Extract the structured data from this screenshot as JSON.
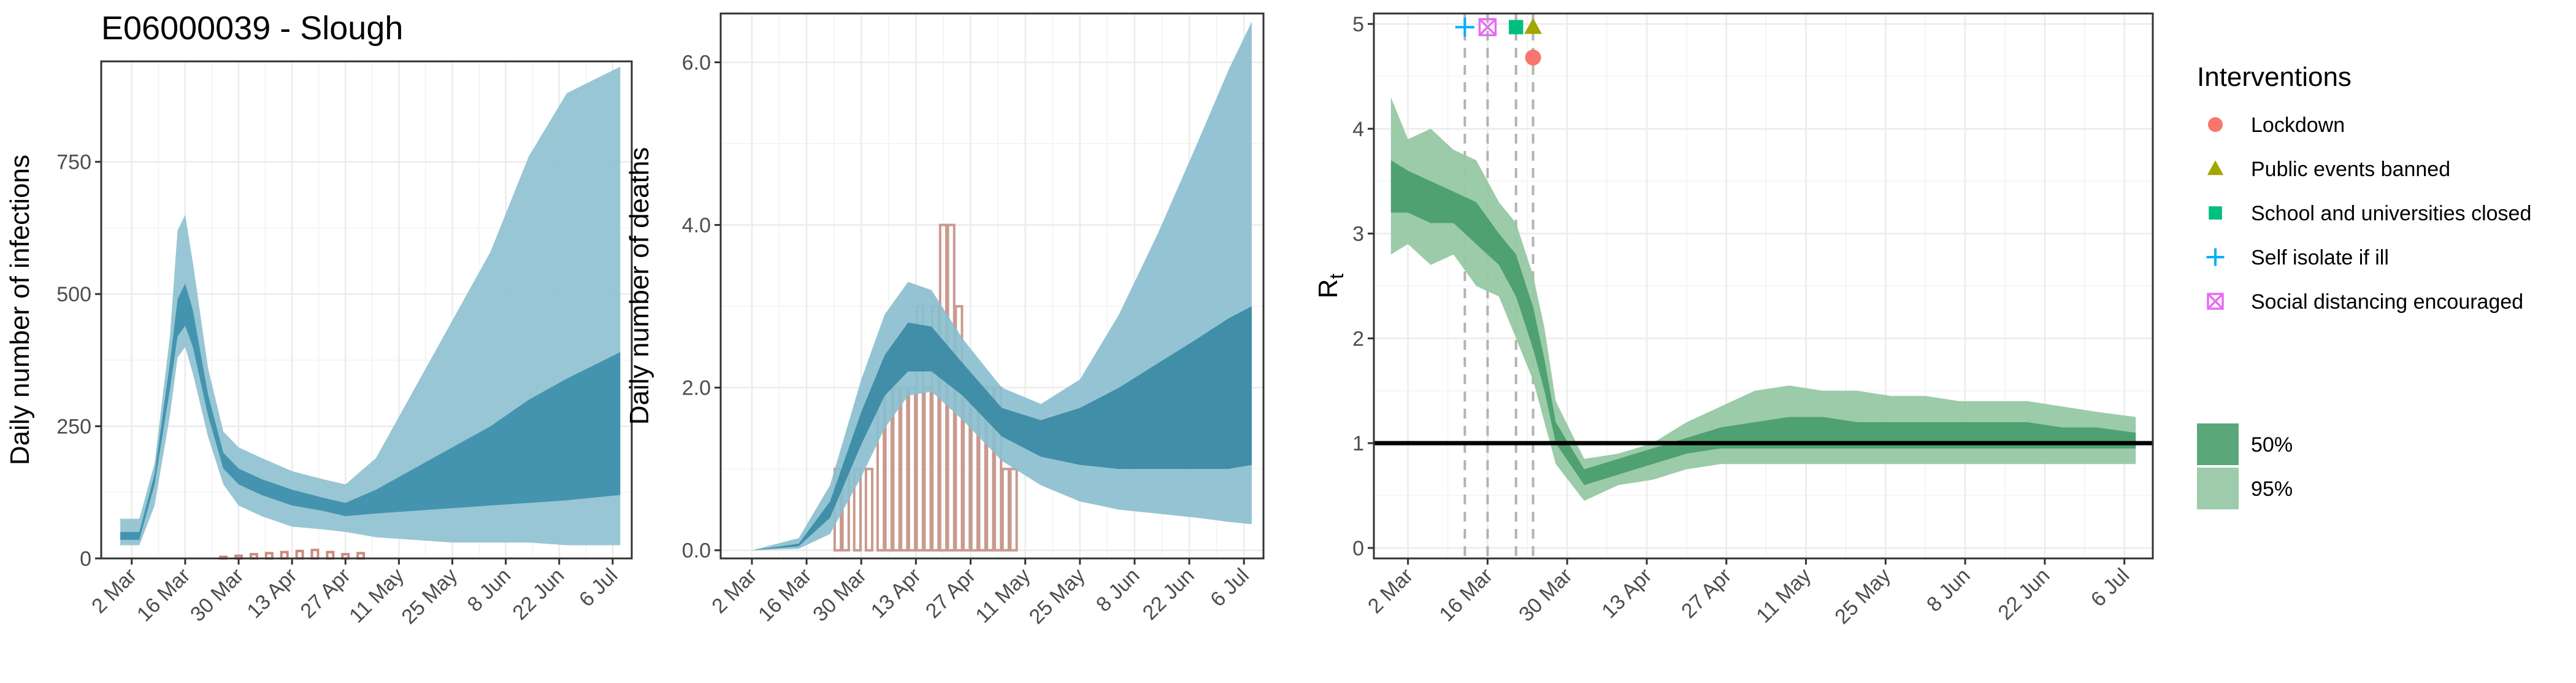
{
  "colors": {
    "infections_ci95": "#8fc1d0",
    "infections_ci50": "#3d8fab",
    "infections_bar": "#c98b7d",
    "deaths_ci95": "#8bbfcf",
    "deaths_ci50": "#3a89a5",
    "deaths_bar": "#c99a8e",
    "rt_ci95": "#96c8a4",
    "rt_ci50": "#4b9e6e",
    "reference_line": "#000000",
    "lockdown": "#f8766d",
    "public_events_banned": "#a3a500",
    "schools_closed": "#00bf7d",
    "self_isolate": "#00b0f6",
    "social_distancing": "#e76bf3",
    "grid_major": "#ebebeb",
    "grid_minor": "#f5f5f5"
  },
  "chart_data": [
    {
      "id": "infections",
      "type": "area",
      "title": "E06000039 - Slough",
      "ylabel": "Daily number of infections",
      "xlabel": "",
      "x_range": [
        "2020-02-23",
        "2020-07-11"
      ],
      "x_ticks": [
        "2 Mar",
        "16 Mar",
        "30 Mar",
        "13 Apr",
        "27 Apr",
        "11 May",
        "25 May",
        "8 Jun",
        "22 Jun",
        "6 Jul"
      ],
      "x_tick_dates": [
        "2020-03-02",
        "2020-03-16",
        "2020-03-30",
        "2020-04-13",
        "2020-04-27",
        "2020-05-11",
        "2020-05-25",
        "2020-06-08",
        "2020-06-22",
        "2020-07-06"
      ],
      "ylim": [
        0,
        940
      ],
      "y_ticks": [
        0,
        250,
        500,
        750
      ],
      "y_tick_labels": [
        "0",
        "250",
        "500",
        "750"
      ],
      "grid": true,
      "series": [
        {
          "kind": "ribbon-95",
          "x": [
            "2020-02-28",
            "2020-03-04",
            "2020-03-08",
            "2020-03-12",
            "2020-03-14",
            "2020-03-16",
            "2020-03-18",
            "2020-03-22",
            "2020-03-26",
            "2020-03-30",
            "2020-04-05",
            "2020-04-13",
            "2020-04-21",
            "2020-04-27",
            "2020-05-05",
            "2020-05-15",
            "2020-05-25",
            "2020-06-04",
            "2020-06-14",
            "2020-06-24",
            "2020-07-08"
          ],
          "low": [
            25,
            25,
            100,
            270,
            380,
            400,
            350,
            230,
            140,
            100,
            80,
            60,
            55,
            50,
            40,
            35,
            30,
            30,
            30,
            25,
            25
          ],
          "high": [
            75,
            75,
            180,
            420,
            620,
            650,
            560,
            360,
            240,
            210,
            190,
            165,
            150,
            140,
            190,
            320,
            450,
            580,
            760,
            880,
            930
          ]
        },
        {
          "kind": "ribbon-50",
          "x": [
            "2020-02-28",
            "2020-03-04",
            "2020-03-08",
            "2020-03-12",
            "2020-03-14",
            "2020-03-16",
            "2020-03-18",
            "2020-03-22",
            "2020-03-26",
            "2020-03-30",
            "2020-04-05",
            "2020-04-13",
            "2020-04-21",
            "2020-04-27",
            "2020-05-05",
            "2020-05-15",
            "2020-05-25",
            "2020-06-04",
            "2020-06-14",
            "2020-06-24",
            "2020-07-08"
          ],
          "low": [
            35,
            35,
            140,
            320,
            420,
            440,
            400,
            270,
            170,
            140,
            120,
            100,
            90,
            80,
            85,
            90,
            95,
            100,
            105,
            110,
            120
          ],
          "high": [
            50,
            50,
            160,
            370,
            490,
            520,
            470,
            310,
            200,
            170,
            150,
            130,
            115,
            105,
            130,
            170,
            210,
            250,
            300,
            340,
            390
          ]
        },
        {
          "kind": "bars",
          "x": [
            "2020-03-26",
            "2020-03-30",
            "2020-04-03",
            "2020-04-07",
            "2020-04-11",
            "2020-04-15",
            "2020-04-19",
            "2020-04-23",
            "2020-04-27",
            "2020-05-01"
          ],
          "values": [
            3,
            5,
            8,
            10,
            12,
            14,
            16,
            12,
            8,
            10
          ]
        }
      ]
    },
    {
      "id": "deaths",
      "type": "area",
      "title": "",
      "ylabel": "Daily number of deaths",
      "xlabel": "",
      "x_range": [
        "2020-02-23",
        "2020-07-11"
      ],
      "x_ticks": [
        "2 Mar",
        "16 Mar",
        "30 Mar",
        "13 Apr",
        "27 Apr",
        "11 May",
        "25 May",
        "8 Jun",
        "22 Jun",
        "6 Jul"
      ],
      "x_tick_dates": [
        "2020-03-02",
        "2020-03-16",
        "2020-03-30",
        "2020-04-13",
        "2020-04-27",
        "2020-05-11",
        "2020-05-25",
        "2020-06-08",
        "2020-06-22",
        "2020-07-06"
      ],
      "ylim": [
        -0.1,
        6.6
      ],
      "y_ticks": [
        0,
        2,
        4,
        6
      ],
      "y_tick_labels": [
        "0.0",
        "2.0",
        "4.0",
        "6.0"
      ],
      "grid": true,
      "series": [
        {
          "kind": "ribbon-95",
          "x": [
            "2020-03-02",
            "2020-03-14",
            "2020-03-22",
            "2020-03-30",
            "2020-04-05",
            "2020-04-11",
            "2020-04-17",
            "2020-04-25",
            "2020-05-05",
            "2020-05-15",
            "2020-05-25",
            "2020-06-04",
            "2020-06-14",
            "2020-06-24",
            "2020-07-02",
            "2020-07-08"
          ],
          "low": [
            0,
            0.02,
            0.2,
            0.9,
            1.5,
            1.9,
            1.95,
            1.6,
            1.1,
            0.8,
            0.6,
            0.5,
            0.45,
            0.4,
            0.35,
            0.32
          ],
          "high": [
            0,
            0.15,
            0.8,
            2.1,
            2.9,
            3.3,
            3.2,
            2.6,
            2.0,
            1.8,
            2.1,
            2.9,
            3.9,
            5.0,
            5.9,
            6.5
          ]
        },
        {
          "kind": "ribbon-50",
          "x": [
            "2020-03-02",
            "2020-03-14",
            "2020-03-22",
            "2020-03-30",
            "2020-04-05",
            "2020-04-11",
            "2020-04-17",
            "2020-04-25",
            "2020-05-05",
            "2020-05-15",
            "2020-05-25",
            "2020-06-04",
            "2020-06-14",
            "2020-06-24",
            "2020-07-02",
            "2020-07-08"
          ],
          "low": [
            0,
            0.05,
            0.4,
            1.3,
            1.9,
            2.2,
            2.2,
            1.9,
            1.4,
            1.15,
            1.05,
            1.0,
            1.0,
            1.0,
            1.0,
            1.05
          ],
          "high": [
            0,
            0.08,
            0.6,
            1.7,
            2.4,
            2.8,
            2.75,
            2.3,
            1.75,
            1.6,
            1.75,
            2.0,
            2.3,
            2.6,
            2.85,
            3.0
          ]
        },
        {
          "kind": "bars",
          "x": [
            "2020-03-24",
            "2020-03-26",
            "2020-03-29",
            "2020-04-01",
            "2020-04-04",
            "2020-04-06",
            "2020-04-08",
            "2020-04-10",
            "2020-04-12",
            "2020-04-14",
            "2020-04-16",
            "2020-04-18",
            "2020-04-20",
            "2020-04-22",
            "2020-04-24",
            "2020-04-26",
            "2020-04-28",
            "2020-04-30",
            "2020-05-02",
            "2020-05-04",
            "2020-05-06",
            "2020-05-08"
          ],
          "values": [
            1,
            1,
            1,
            1,
            2,
            2,
            2,
            2,
            2,
            3,
            2,
            3,
            4,
            4,
            3,
            2,
            2,
            2,
            2,
            2,
            1,
            1
          ]
        }
      ]
    },
    {
      "id": "rt",
      "type": "area",
      "title": "",
      "ylabel": "R",
      "ylabel_sub": "t",
      "xlabel": "",
      "x_range": [
        "2020-02-25",
        "2020-07-11"
      ],
      "x_ticks": [
        "2 Mar",
        "16 Mar",
        "30 Mar",
        "13 Apr",
        "27 Apr",
        "11 May",
        "25 May",
        "8 Jun",
        "22 Jun",
        "6 Jul"
      ],
      "x_tick_dates": [
        "2020-03-02",
        "2020-03-16",
        "2020-03-30",
        "2020-04-13",
        "2020-04-27",
        "2020-05-11",
        "2020-05-25",
        "2020-06-08",
        "2020-06-22",
        "2020-07-06"
      ],
      "ylim": [
        -0.1,
        5.1
      ],
      "y_ticks": [
        0,
        1,
        2,
        3,
        4,
        5
      ],
      "y_tick_labels": [
        "0",
        "1",
        "2",
        "3",
        "4",
        "5"
      ],
      "grid": true,
      "reference_line": 1,
      "series": [
        {
          "kind": "ribbon-95",
          "x": [
            "2020-02-28",
            "2020-03-02",
            "2020-03-06",
            "2020-03-10",
            "2020-03-14",
            "2020-03-18",
            "2020-03-21",
            "2020-03-24",
            "2020-03-26",
            "2020-03-28",
            "2020-04-02",
            "2020-04-08",
            "2020-04-14",
            "2020-04-20",
            "2020-04-26",
            "2020-05-02",
            "2020-05-08",
            "2020-05-14",
            "2020-05-20",
            "2020-05-26",
            "2020-06-01",
            "2020-06-07",
            "2020-06-13",
            "2020-06-19",
            "2020-06-25",
            "2020-07-01",
            "2020-07-08"
          ],
          "low": [
            2.8,
            2.9,
            2.7,
            2.8,
            2.5,
            2.4,
            2.0,
            1.6,
            1.2,
            0.8,
            0.45,
            0.6,
            0.65,
            0.75,
            0.8,
            0.8,
            0.8,
            0.8,
            0.8,
            0.8,
            0.8,
            0.8,
            0.8,
            0.8,
            0.8,
            0.8,
            0.8
          ],
          "high": [
            4.3,
            3.9,
            4.0,
            3.8,
            3.7,
            3.3,
            3.1,
            2.6,
            2.1,
            1.4,
            0.85,
            0.9,
            1.0,
            1.2,
            1.35,
            1.5,
            1.55,
            1.5,
            1.5,
            1.45,
            1.45,
            1.4,
            1.4,
            1.4,
            1.35,
            1.3,
            1.25
          ]
        },
        {
          "kind": "ribbon-50",
          "x": [
            "2020-02-28",
            "2020-03-02",
            "2020-03-06",
            "2020-03-10",
            "2020-03-14",
            "2020-03-18",
            "2020-03-21",
            "2020-03-24",
            "2020-03-26",
            "2020-03-28",
            "2020-04-02",
            "2020-04-08",
            "2020-04-14",
            "2020-04-20",
            "2020-04-26",
            "2020-05-02",
            "2020-05-08",
            "2020-05-14",
            "2020-05-20",
            "2020-05-26",
            "2020-06-01",
            "2020-06-07",
            "2020-06-13",
            "2020-06-19",
            "2020-06-25",
            "2020-07-01",
            "2020-07-08"
          ],
          "low": [
            3.2,
            3.2,
            3.1,
            3.1,
            2.9,
            2.7,
            2.4,
            1.9,
            1.5,
            1.0,
            0.6,
            0.7,
            0.8,
            0.9,
            0.95,
            0.95,
            0.95,
            0.95,
            0.95,
            0.95,
            0.95,
            0.95,
            0.95,
            0.95,
            0.95,
            0.95,
            0.95
          ],
          "high": [
            3.7,
            3.6,
            3.5,
            3.4,
            3.3,
            3.0,
            2.8,
            2.3,
            1.8,
            1.2,
            0.75,
            0.85,
            0.95,
            1.05,
            1.15,
            1.2,
            1.25,
            1.25,
            1.2,
            1.2,
            1.2,
            1.2,
            1.2,
            1.2,
            1.15,
            1.15,
            1.1
          ]
        }
      ],
      "interventions": [
        {
          "name": "Self isolate if ill",
          "date": "2020-03-12",
          "y": 4.97,
          "shape": "plus",
          "color": "#00b0f6"
        },
        {
          "name": "Social distancing encouraged",
          "date": "2020-03-16",
          "y": 4.97,
          "shape": "box-x",
          "color": "#e76bf3"
        },
        {
          "name": "School and universities closed",
          "date": "2020-03-21",
          "y": 4.97,
          "shape": "square",
          "color": "#00bf7d"
        },
        {
          "name": "Public events banned",
          "date": "2020-03-24",
          "y": 4.97,
          "shape": "triangle",
          "color": "#a3a500"
        },
        {
          "name": "Lockdown",
          "date": "2020-03-24",
          "y": 4.68,
          "shape": "circle",
          "color": "#f8766d"
        }
      ]
    }
  ],
  "legend": {
    "title": "Interventions",
    "placement": "right",
    "items": [
      {
        "label": "Lockdown",
        "shape": "circle",
        "color": "#f8766d"
      },
      {
        "label": "Public events banned",
        "shape": "triangle",
        "color": "#a3a500"
      },
      {
        "label": "School and universities closed",
        "shape": "square",
        "color": "#00bf7d"
      },
      {
        "label": "Self isolate if ill",
        "shape": "plus",
        "color": "#00b0f6"
      },
      {
        "label": "Social distancing encouraged",
        "shape": "box-x",
        "color": "#e76bf3"
      }
    ],
    "ci_items": [
      {
        "label": "50%",
        "color": "#5aa77a"
      },
      {
        "label": "95%",
        "color": "#9dcbac"
      }
    ]
  }
}
